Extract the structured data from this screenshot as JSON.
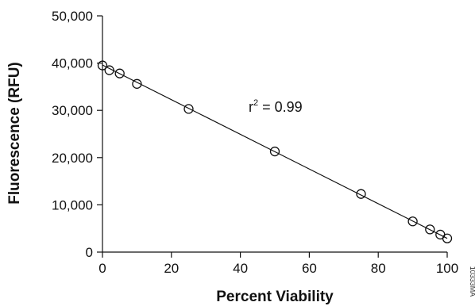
{
  "chart_data": {
    "type": "scatter",
    "xlabel": "Percent Viability",
    "ylabel": "Fluorescence (RFU)",
    "xlim": [
      0,
      100
    ],
    "ylim": [
      0,
      50000
    ],
    "x_ticks": [
      0,
      20,
      40,
      60,
      80,
      100
    ],
    "y_ticks": [
      0,
      10000,
      20000,
      30000,
      40000,
      50000
    ],
    "x_tick_labels": [
      "0",
      "20",
      "40",
      "60",
      "80",
      "100"
    ],
    "y_tick_labels": [
      "0",
      "10,000",
      "20,000",
      "30,000",
      "40,000",
      "50,000"
    ],
    "grid": false,
    "series": [
      {
        "x": [
          0,
          2,
          5,
          10,
          25,
          50,
          75,
          90,
          95,
          98,
          100
        ],
        "y": [
          39500,
          38500,
          37800,
          35600,
          30300,
          21300,
          12300,
          6500,
          4800,
          3700,
          2900
        ],
        "marker": "open-circle"
      }
    ],
    "fit_line": {
      "x": [
        0,
        100
      ],
      "y": [
        39600,
        2900
      ]
    },
    "annotation": {
      "prefix": "r",
      "superscript": "2",
      "text": " = 0.99"
    },
    "side_code": "10333MA"
  }
}
